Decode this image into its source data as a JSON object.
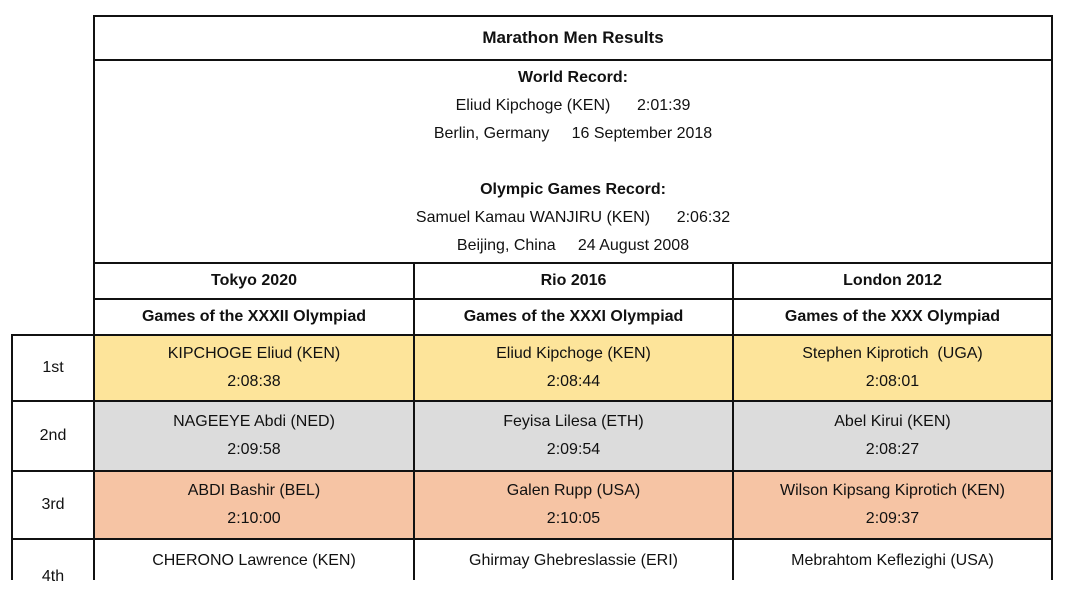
{
  "table": {
    "title": "Marathon Men Results",
    "world_record": {
      "heading": "World Record:",
      "athlete": "Eliud Kipchoge (KEN)",
      "time": "2:01:39",
      "place": "Berlin, Germany",
      "date": "16 September 2018"
    },
    "olympic_record": {
      "heading": "Olympic Games Record:",
      "athlete": "Samuel Kamau WANJIRU (KEN)",
      "time": "2:06:32",
      "place": "Beijing, China",
      "date": "24 August 2008"
    },
    "columns": [
      {
        "games": "Tokyo 2020",
        "olympiad": "Games of the XXXII Olympiad"
      },
      {
        "games": "Rio 2016",
        "olympiad": "Games of the XXXI Olympiad"
      },
      {
        "games": "London 2012",
        "olympiad": "Games of the XXX Olympiad"
      }
    ],
    "rows": [
      {
        "rank": "1st",
        "results": [
          {
            "athlete": "KIPCHOGE Eliud (KEN)",
            "time": "2:08:38"
          },
          {
            "athlete": "Eliud Kipchoge (KEN)",
            "time": "2:08:44"
          },
          {
            "athlete": "Stephen Kiprotich  (UGA)",
            "time": "2:08:01"
          }
        ]
      },
      {
        "rank": "2nd",
        "results": [
          {
            "athlete": "NAGEEYE Abdi (NED)",
            "time": "2:09:58"
          },
          {
            "athlete": "Feyisa Lilesa (ETH)",
            "time": "2:09:54"
          },
          {
            "athlete": "Abel Kirui (KEN)",
            "time": "2:08:27"
          }
        ]
      },
      {
        "rank": "3rd",
        "results": [
          {
            "athlete": "ABDI Bashir (BEL)",
            "time": "2:10:00"
          },
          {
            "athlete": "Galen Rupp (USA)",
            "time": "2:10:05"
          },
          {
            "athlete": "Wilson Kipsang Kiprotich (KEN)",
            "time": "2:09:37"
          }
        ]
      },
      {
        "rank": "4th",
        "results": [
          {
            "athlete": "CHERONO Lawrence (KEN)",
            "time": ""
          },
          {
            "athlete": "Ghirmay Ghebreslassie (ERI)",
            "time": ""
          },
          {
            "athlete": "Mebrahtom Keflezighi (USA)",
            "time": ""
          }
        ]
      }
    ],
    "colors": {
      "gold": "#fde49a",
      "silver": "#dcdcdc",
      "bronze": "#f6c4a4",
      "border": "#111111"
    }
  }
}
